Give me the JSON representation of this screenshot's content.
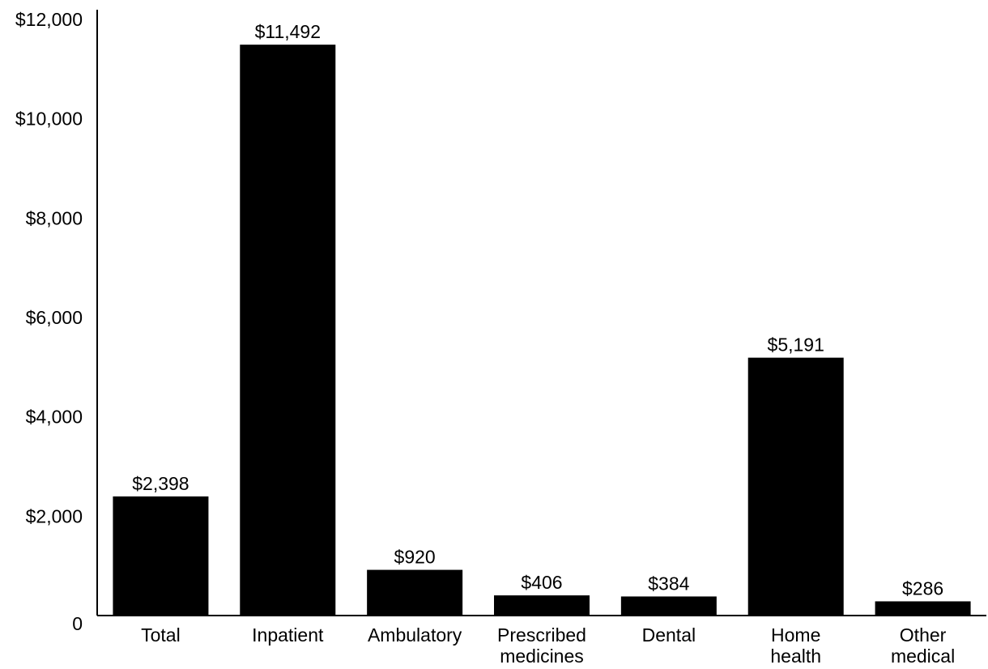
{
  "chart_data": {
    "type": "bar",
    "title": "",
    "xlabel": "",
    "ylabel": "",
    "ylim": [
      0,
      12000
    ],
    "y_ticks": [
      0,
      2000,
      4000,
      6000,
      8000,
      10000,
      12000
    ],
    "y_tick_labels": [
      "0",
      "$2,000",
      "$4,000",
      "$6,000",
      "$8,000",
      "$10,000",
      "$12,000"
    ],
    "categories": [
      [
        "Total"
      ],
      [
        "Inpatient"
      ],
      [
        "Ambulatory"
      ],
      [
        "Prescribed",
        "medicines"
      ],
      [
        "Dental"
      ],
      [
        "Home",
        "health"
      ],
      [
        "Other",
        "medical"
      ]
    ],
    "values": [
      2398,
      11492,
      920,
      406,
      384,
      5191,
      286
    ],
    "value_labels": [
      "$2,398",
      "$11,492",
      "$920",
      "$406",
      "$384",
      "$5,191",
      "$286"
    ],
    "bar_color": "#000000",
    "grid": false,
    "legend": "none"
  }
}
